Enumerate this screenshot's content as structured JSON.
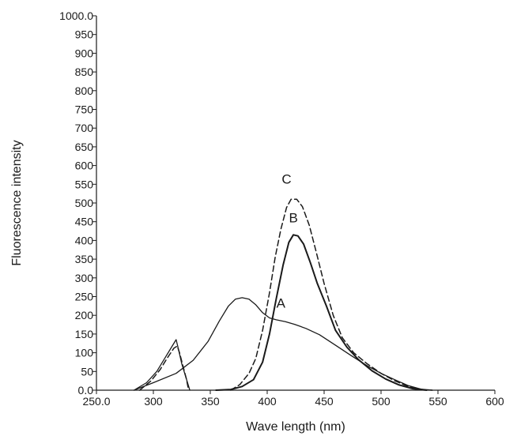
{
  "chart_data": {
    "type": "line",
    "title": "",
    "xlabel": "Wave length (nm)",
    "ylabel": "Fluorescence intensity",
    "xlim": [
      250,
      600
    ],
    "ylim": [
      0,
      1000
    ],
    "x_ticks": [
      250,
      300,
      350,
      400,
      450,
      500,
      550,
      600
    ],
    "x_tick_labels": [
      "250.0",
      "300",
      "350",
      "400",
      "450",
      "500",
      "550",
      "600"
    ],
    "y_ticks": [
      0,
      50,
      100,
      150,
      200,
      250,
      300,
      350,
      400,
      450,
      500,
      550,
      600,
      650,
      700,
      750,
      800,
      850,
      900,
      950,
      1000
    ],
    "y_tick_labels": [
      "0.0",
      "50",
      "100",
      "150",
      "200",
      "250",
      "300",
      "350",
      "400",
      "450",
      "500",
      "550",
      "600",
      "650",
      "700",
      "750",
      "800",
      "850",
      "900",
      "950",
      "1000.0"
    ],
    "grid": false,
    "legend": "none",
    "series": [
      {
        "name": "A",
        "style": "solid-thin",
        "color": "#1a1a1a",
        "points": [
          [
            283,
            0
          ],
          [
            300,
            20
          ],
          [
            320,
            45
          ],
          [
            335,
            80
          ],
          [
            348,
            130
          ],
          [
            358,
            185
          ],
          [
            366,
            225
          ],
          [
            372,
            243
          ],
          [
            378,
            247
          ],
          [
            384,
            243
          ],
          [
            390,
            228
          ],
          [
            396,
            207
          ],
          [
            402,
            193
          ],
          [
            408,
            188
          ],
          [
            416,
            183
          ],
          [
            424,
            176
          ],
          [
            434,
            165
          ],
          [
            446,
            148
          ],
          [
            460,
            120
          ],
          [
            474,
            92
          ],
          [
            488,
            65
          ],
          [
            500,
            45
          ],
          [
            512,
            28
          ],
          [
            524,
            12
          ],
          [
            535,
            3
          ],
          [
            545,
            0
          ]
        ]
      },
      {
        "name": "B",
        "style": "solid-thick",
        "color": "#1a1a1a",
        "points": [
          [
            355,
            0
          ],
          [
            368,
            2
          ],
          [
            378,
            10
          ],
          [
            388,
            28
          ],
          [
            396,
            75
          ],
          [
            402,
            150
          ],
          [
            408,
            245
          ],
          [
            414,
            335
          ],
          [
            419,
            395
          ],
          [
            423,
            415
          ],
          [
            427,
            412
          ],
          [
            432,
            390
          ],
          [
            438,
            340
          ],
          [
            444,
            285
          ],
          [
            452,
            225
          ],
          [
            460,
            160
          ],
          [
            470,
            115
          ],
          [
            480,
            82
          ],
          [
            492,
            52
          ],
          [
            504,
            30
          ],
          [
            516,
            14
          ],
          [
            528,
            4
          ],
          [
            540,
            0
          ]
        ]
      },
      {
        "name": "C",
        "style": "dashed",
        "color": "#1a1a1a",
        "points": [
          [
            368,
            0
          ],
          [
            376,
            15
          ],
          [
            384,
            45
          ],
          [
            390,
            85
          ],
          [
            396,
            160
          ],
          [
            402,
            260
          ],
          [
            407,
            355
          ],
          [
            412,
            430
          ],
          [
            417,
            488
          ],
          [
            421,
            510
          ],
          [
            426,
            510
          ],
          [
            431,
            490
          ],
          [
            437,
            440
          ],
          [
            443,
            370
          ],
          [
            450,
            285
          ],
          [
            458,
            200
          ],
          [
            466,
            140
          ],
          [
            476,
            100
          ],
          [
            488,
            70
          ],
          [
            500,
            45
          ],
          [
            512,
            25
          ],
          [
            524,
            10
          ],
          [
            536,
            2
          ],
          [
            545,
            0
          ]
        ]
      },
      {
        "name": "",
        "style": "solid-thin",
        "color": "#1a1a1a",
        "points": [
          [
            283,
            0
          ],
          [
            294,
            20
          ],
          [
            303,
            50
          ],
          [
            310,
            85
          ],
          [
            316,
            115
          ],
          [
            320,
            135
          ],
          [
            322,
            110
          ],
          [
            325,
            70
          ],
          [
            329,
            30
          ],
          [
            332,
            0
          ]
        ]
      },
      {
        "name": "",
        "style": "dashed",
        "color": "#1a1a1a",
        "points": [
          [
            288,
            0
          ],
          [
            298,
            25
          ],
          [
            306,
            55
          ],
          [
            312,
            85
          ],
          [
            318,
            112
          ],
          [
            321,
            118
          ],
          [
            323,
            100
          ],
          [
            326,
            65
          ],
          [
            329,
            30
          ],
          [
            331,
            0
          ]
        ]
      }
    ],
    "annotations": [
      {
        "text": "A",
        "x": 412,
        "y": 220
      },
      {
        "text": "B",
        "x": 423,
        "y": 448
      },
      {
        "text": "C",
        "x": 417,
        "y": 552
      }
    ]
  }
}
